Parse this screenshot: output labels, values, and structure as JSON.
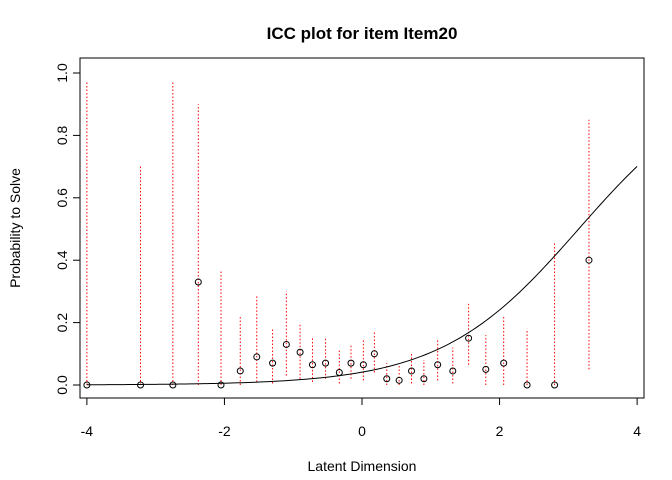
{
  "chart_data": {
    "type": "scatter",
    "title": "ICC plot for item  Item20",
    "xlabel": "Latent Dimension",
    "ylabel": "Probability to Solve",
    "xlim": [
      -4.1,
      4.1
    ],
    "ylim": [
      0.0,
      1.0
    ],
    "x_ticks": [
      -4,
      -2,
      0,
      2,
      4
    ],
    "x_tick_labels": [
      "-4",
      "-2",
      "0",
      "2",
      "4"
    ],
    "y_ticks": [
      0.0,
      0.2,
      0.4,
      0.6,
      0.8,
      1.0
    ],
    "y_tick_labels": [
      "0.0",
      "0.2",
      "0.4",
      "0.6",
      "0.8",
      "1.0"
    ],
    "curve": {
      "name": "ICC",
      "model": "logistic",
      "location": 3.15,
      "x_range": [
        -4,
        4
      ],
      "color": "#000000"
    },
    "observed_points": {
      "name": "Observed proportions",
      "x": [
        -4.0,
        -3.22,
        -2.75,
        -2.38,
        -2.05,
        -1.77,
        -1.53,
        -1.3,
        -1.1,
        -0.9,
        -0.72,
        -0.53,
        -0.33,
        -0.16,
        0.02,
        0.18,
        0.36,
        0.54,
        0.72,
        0.9,
        1.1,
        1.32,
        1.55,
        1.8,
        2.06,
        2.4,
        2.8,
        3.3
      ],
      "y": [
        0.0,
        0.0,
        0.0,
        0.33,
        0.0,
        0.045,
        0.09,
        0.07,
        0.13,
        0.105,
        0.065,
        0.07,
        0.04,
        0.07,
        0.065,
        0.1,
        0.02,
        0.015,
        0.045,
        0.02,
        0.065,
        0.045,
        0.15,
        0.05,
        0.07,
        0.0,
        0.0,
        0.4
      ],
      "color": "#000000"
    },
    "confidence_intervals": {
      "name": "Confidence intervals",
      "color": "#ff0000",
      "line_style": "dotted",
      "lower": [
        0.0,
        0.0,
        0.0,
        0.0,
        0.0,
        0.0,
        0.01,
        0.005,
        0.03,
        0.02,
        0.01,
        0.02,
        0.005,
        0.02,
        0.015,
        0.04,
        0.0,
        0.0,
        0.005,
        0.0,
        0.015,
        0.005,
        0.065,
        0.0,
        0.0,
        0.0,
        0.0,
        0.05
      ],
      "upper": [
        0.97,
        0.7,
        0.97,
        0.9,
        0.37,
        0.22,
        0.29,
        0.18,
        0.3,
        0.2,
        0.15,
        0.15,
        0.11,
        0.13,
        0.15,
        0.17,
        0.07,
        0.07,
        0.1,
        0.08,
        0.15,
        0.12,
        0.26,
        0.16,
        0.22,
        0.18,
        0.46,
        0.85
      ]
    }
  }
}
